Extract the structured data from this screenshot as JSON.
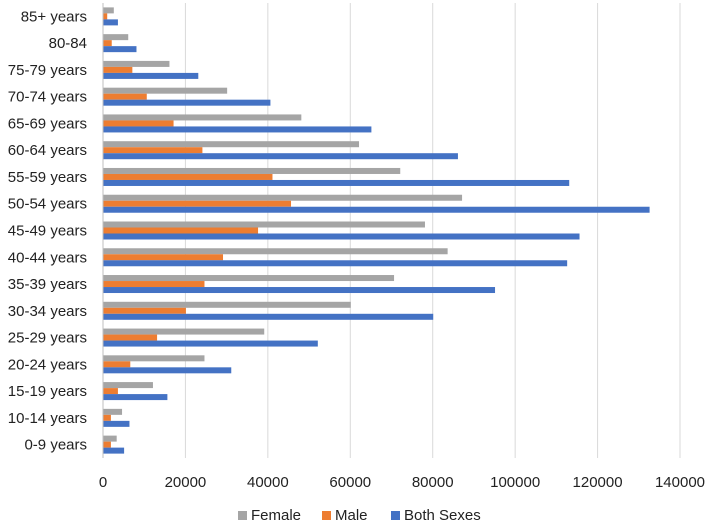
{
  "chart_data": {
    "type": "bar",
    "orientation": "horizontal",
    "categories": [
      "85+ years",
      "80-84",
      "75-79 years",
      "70-74 years",
      "65-69 years",
      "60-64 years",
      "55-59 years",
      "50-54 years",
      "45-49 years",
      "40-44 years",
      "35-39 years",
      "30-34 years",
      "25-29 years",
      "20-24 years",
      "15-19 years",
      "10-14 years",
      "0-9 years"
    ],
    "series": [
      {
        "name": "Female",
        "color": "#a5a5a5",
        "values": [
          2500,
          6000,
          16000,
          30000,
          48000,
          62000,
          72000,
          87000,
          78000,
          83500,
          70500,
          60000,
          39000,
          24500,
          12000,
          4500,
          3200
        ]
      },
      {
        "name": "Male",
        "color": "#ed7d31",
        "values": [
          900,
          2000,
          7000,
          10500,
          17000,
          24000,
          41000,
          45500,
          37500,
          29000,
          24500,
          20000,
          13000,
          6500,
          3500,
          1800,
          1800
        ]
      },
      {
        "name": "Both Sexes",
        "color": "#4472c4",
        "values": [
          3500,
          8000,
          23000,
          40500,
          65000,
          86000,
          113000,
          132500,
          115500,
          112500,
          95000,
          80000,
          52000,
          31000,
          15500,
          6300,
          5000
        ]
      }
    ],
    "xlim": [
      0,
      140000
    ],
    "x_ticks": [
      "0",
      "20000",
      "40000",
      "60000",
      "80000",
      "100000",
      "120000",
      "140000"
    ],
    "grid": true,
    "legend_position": "bottom",
    "title": "",
    "xlabel": "",
    "ylabel": ""
  }
}
